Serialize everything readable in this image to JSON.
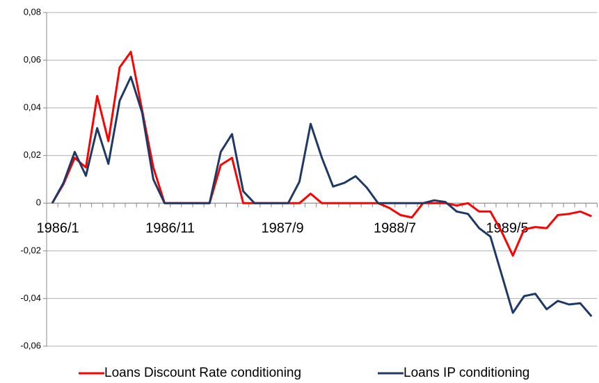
{
  "chart_data": {
    "type": "line",
    "categories": [
      "1986/1",
      null,
      null,
      null,
      null,
      null,
      null,
      null,
      null,
      null,
      "1986/11",
      null,
      null,
      null,
      null,
      null,
      null,
      null,
      null,
      null,
      "1987/9",
      null,
      null,
      null,
      null,
      null,
      null,
      null,
      null,
      null,
      "1988/7",
      null,
      null,
      null,
      null,
      null,
      null,
      null,
      null,
      null,
      "1989/5",
      null,
      null,
      null,
      null,
      null,
      null,
      null,
      null
    ],
    "series": [
      {
        "name": "Loans Discount Rate conditioning",
        "color": "#ff0000",
        "values": [
          0,
          0.008,
          0.019,
          0.015,
          0.045,
          0.026,
          0.057,
          0.0635,
          0.039,
          0.015,
          0,
          0,
          0,
          0,
          0,
          0.016,
          0.019,
          0,
          0,
          0,
          0,
          0,
          0,
          0.004,
          0,
          0,
          0,
          0,
          0,
          0,
          -0.002,
          -0.005,
          -0.006,
          0,
          0,
          0,
          -0.001,
          0,
          -0.0035,
          -0.0035,
          -0.012,
          -0.022,
          -0.011,
          -0.01,
          -0.0105,
          -0.005,
          -0.0045,
          -0.0035,
          -0.0055
        ]
      },
      {
        "name": "Loans IP conditioning",
        "color": "#1f3864",
        "values": [
          0,
          0.0085,
          0.0215,
          0.0115,
          0.0315,
          0.0165,
          0.043,
          0.053,
          0.038,
          0.01,
          0,
          0,
          0,
          0,
          0,
          0.0215,
          0.029,
          0.005,
          0,
          0,
          0,
          0,
          0.009,
          0.0333,
          0.019,
          0.007,
          0.0085,
          0.0113,
          0.0065,
          0,
          0,
          0,
          0,
          0,
          0.0012,
          0.0005,
          -0.0035,
          -0.0045,
          -0.0105,
          -0.014,
          -0.03,
          -0.046,
          -0.039,
          -0.038,
          -0.0445,
          -0.041,
          -0.0425,
          -0.042,
          -0.0475
        ]
      }
    ],
    "ylim": [
      -0.06,
      0.08
    ],
    "yticks": [
      {
        "value": -0.06,
        "label": "-0,06"
      },
      {
        "value": -0.04,
        "label": "-0,04"
      },
      {
        "value": -0.02,
        "label": "-0,02"
      },
      0,
      {
        "value": 0.02,
        "label": "0,02"
      },
      {
        "value": 0.04,
        "label": "0,04"
      },
      {
        "value": 0.06,
        "label": "0,06"
      },
      {
        "value": 0.08,
        "label": "0,08"
      }
    ],
    "grid": true,
    "legend": "bottom"
  }
}
